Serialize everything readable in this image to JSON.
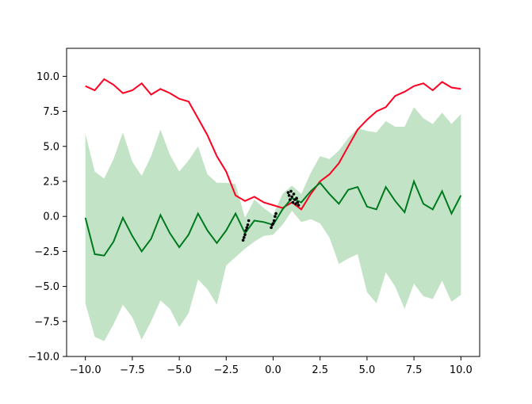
{
  "chart_data": {
    "type": "line",
    "title": "",
    "xlabel": "",
    "ylabel": "",
    "xlim": [
      -11.0,
      11.0
    ],
    "ylim": [
      -10.0,
      12.0
    ],
    "grid": false,
    "legend": "none",
    "x_ticks": [
      {
        "value": -10.0,
        "label": "−10.0"
      },
      {
        "value": -7.5,
        "label": "−7.5"
      },
      {
        "value": -5.0,
        "label": "−5.0"
      },
      {
        "value": -2.5,
        "label": "−2.5"
      },
      {
        "value": 0.0,
        "label": "0.0"
      },
      {
        "value": 2.5,
        "label": "2.5"
      },
      {
        "value": 5.0,
        "label": "5.0"
      },
      {
        "value": 7.5,
        "label": "7.5"
      },
      {
        "value": 10.0,
        "label": "10.0"
      }
    ],
    "y_ticks": [
      {
        "value": -10.0,
        "label": "−10.0"
      },
      {
        "value": -7.5,
        "label": "−7.5"
      },
      {
        "value": -5.0,
        "label": "−5.0"
      },
      {
        "value": -2.5,
        "label": "−2.5"
      },
      {
        "value": 0.0,
        "label": "0.0"
      },
      {
        "value": 2.5,
        "label": "2.5"
      },
      {
        "value": 5.0,
        "label": "5.0"
      },
      {
        "value": 7.5,
        "label": "7.5"
      },
      {
        "value": 10.0,
        "label": "10.0"
      }
    ],
    "colors": {
      "mean": "#007a1f",
      "band": "#5fb56a",
      "uncertainty": "#ff0022",
      "observations": "#000000"
    },
    "x": [
      -10.0,
      -9.5,
      -9.0,
      -8.5,
      -8.0,
      -7.5,
      -7.0,
      -6.5,
      -6.0,
      -5.5,
      -5.0,
      -4.5,
      -4.0,
      -3.5,
      -3.0,
      -2.5,
      -2.0,
      -1.5,
      -1.0,
      -0.5,
      0.0,
      0.5,
      1.0,
      1.5,
      2.0,
      2.5,
      3.0,
      3.5,
      4.0,
      4.5,
      5.0,
      5.5,
      6.0,
      6.5,
      7.0,
      7.5,
      8.0,
      8.5,
      9.0,
      9.5,
      10.0
    ],
    "series": [
      {
        "role": "mean",
        "values": [
          -0.1,
          -2.7,
          -2.8,
          -1.8,
          -0.1,
          -1.4,
          -2.5,
          -1.6,
          0.1,
          -1.2,
          -2.2,
          -1.3,
          0.2,
          -1.0,
          -1.9,
          -1.0,
          0.2,
          -1.2,
          -0.3,
          -0.4,
          -0.6,
          0.5,
          1.3,
          1.0,
          1.8,
          2.4,
          1.6,
          0.9,
          1.9,
          2.1,
          0.7,
          0.5,
          2.1,
          1.1,
          0.3,
          2.5,
          0.9,
          0.5,
          1.8,
          0.2,
          1.5
        ]
      },
      {
        "role": "uncertainty",
        "values": [
          9.3,
          9.0,
          9.8,
          9.4,
          8.8,
          9.0,
          9.5,
          8.7,
          9.1,
          8.8,
          8.4,
          8.2,
          7.0,
          5.8,
          4.3,
          3.2,
          1.5,
          1.1,
          1.4,
          1.0,
          0.8,
          0.6,
          1.0,
          0.5,
          1.6,
          2.5,
          3.0,
          3.8,
          5.0,
          6.2,
          6.9,
          7.5,
          7.8,
          8.6,
          8.9,
          9.3,
          9.5,
          9.0,
          9.6,
          9.2,
          9.1
        ]
      },
      {
        "role": "band_upper",
        "values": [
          5.9,
          3.2,
          2.7,
          4.1,
          6.0,
          3.9,
          2.9,
          4.3,
          6.2,
          4.4,
          3.2,
          4.0,
          5.0,
          3.0,
          2.4,
          2.4,
          2.3,
          -0.1,
          1.2,
          0.6,
          0.1,
          1.6,
          2.2,
          1.6,
          3.1,
          4.3,
          4.1,
          4.7,
          5.6,
          6.3,
          6.1,
          6.0,
          6.8,
          6.4,
          6.4,
          7.8,
          7.0,
          6.6,
          7.4,
          6.6,
          7.3
        ]
      },
      {
        "role": "band_lower",
        "values": [
          -6.2,
          -8.6,
          -8.9,
          -7.7,
          -6.3,
          -7.2,
          -8.8,
          -7.5,
          -6.0,
          -6.6,
          -7.9,
          -6.9,
          -4.5,
          -5.2,
          -6.3,
          -3.5,
          -2.9,
          -2.3,
          -1.8,
          -1.4,
          -1.3,
          -0.6,
          0.4,
          -0.4,
          -0.2,
          -0.5,
          -1.5,
          -3.4,
          -3.0,
          -2.7,
          -5.4,
          -6.2,
          -4.0,
          -5.0,
          -6.6,
          -4.8,
          -5.7,
          -5.9,
          -4.6,
          -6.1,
          -5.6
        ]
      }
    ],
    "observations": [
      {
        "x": -1.6,
        "y": -1.7
      },
      {
        "x": -1.55,
        "y": -1.5
      },
      {
        "x": -1.5,
        "y": -1.3
      },
      {
        "x": -1.45,
        "y": -1.0
      },
      {
        "x": -1.4,
        "y": -0.8
      },
      {
        "x": -1.35,
        "y": -0.6
      },
      {
        "x": -1.3,
        "y": -0.3
      },
      {
        "x": -0.1,
        "y": -0.8
      },
      {
        "x": -0.05,
        "y": -0.6
      },
      {
        "x": 0.0,
        "y": -0.5
      },
      {
        "x": 0.05,
        "y": -0.3
      },
      {
        "x": 0.1,
        "y": 0.0
      },
      {
        "x": 0.15,
        "y": 0.2
      },
      {
        "x": 0.8,
        "y": 1.7
      },
      {
        "x": 0.85,
        "y": 1.5
      },
      {
        "x": 0.9,
        "y": 1.2
      },
      {
        "x": 0.95,
        "y": 1.8
      },
      {
        "x": 1.0,
        "y": 1.4
      },
      {
        "x": 1.05,
        "y": 1.0
      },
      {
        "x": 1.1,
        "y": 1.6
      },
      {
        "x": 1.15,
        "y": 1.2
      },
      {
        "x": 1.2,
        "y": 0.9
      },
      {
        "x": 1.25,
        "y": 1.3
      },
      {
        "x": 1.3,
        "y": 1.0
      },
      {
        "x": 1.35,
        "y": 0.8
      }
    ]
  }
}
